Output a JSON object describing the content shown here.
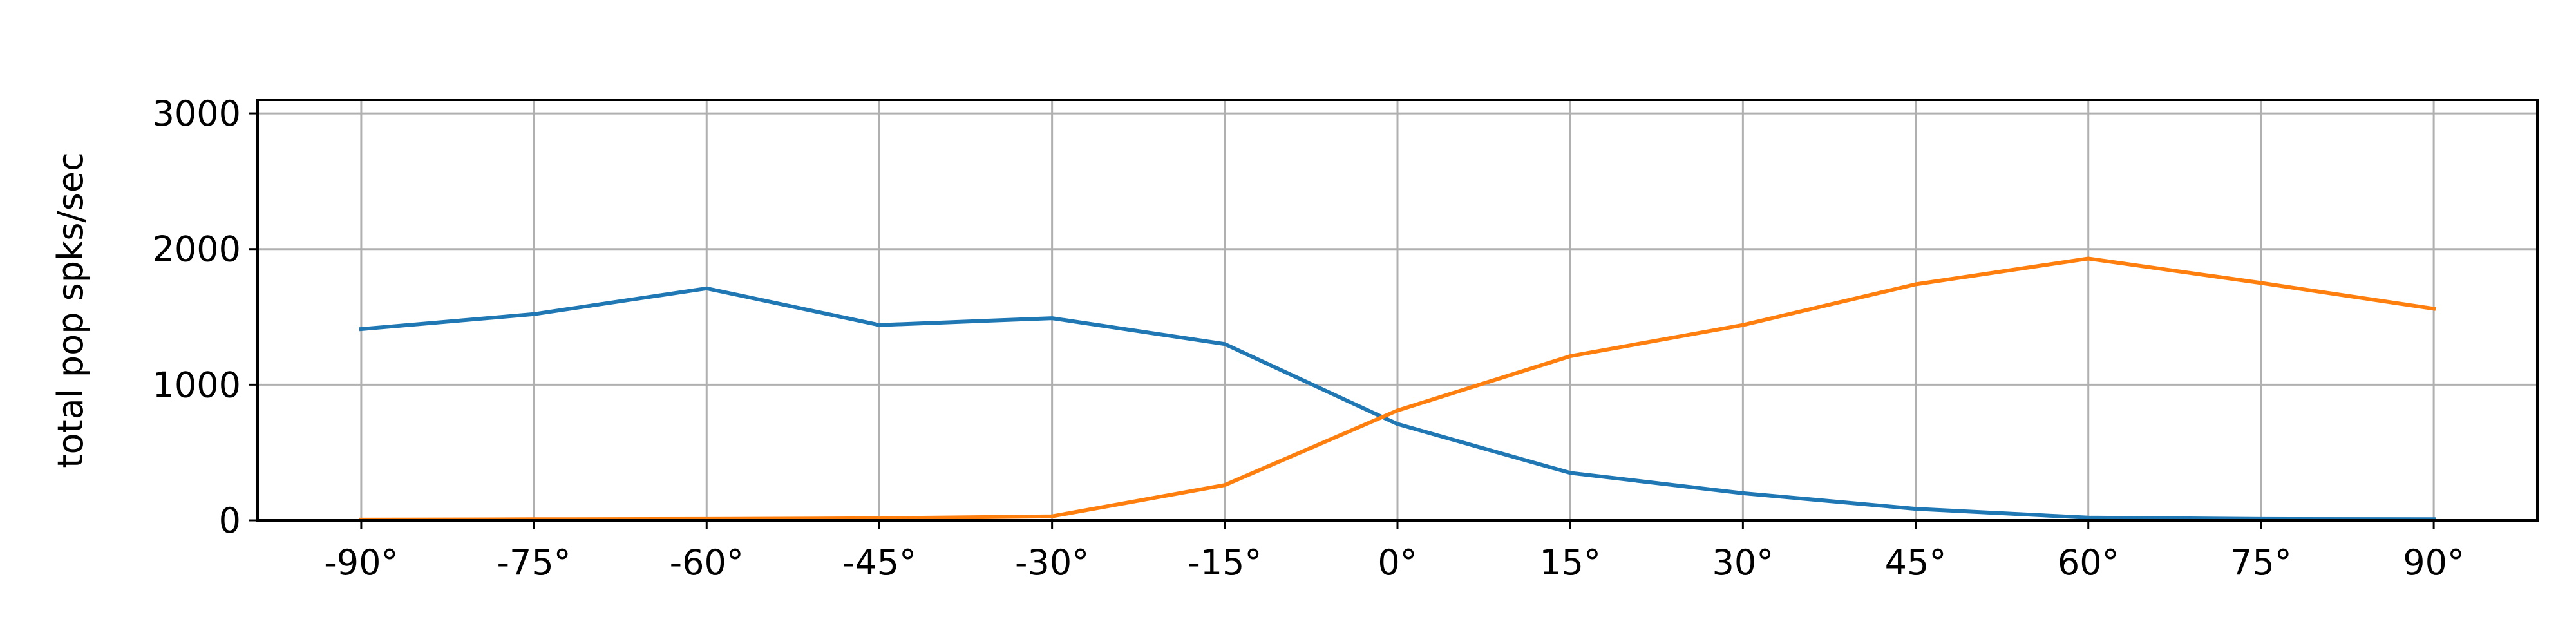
{
  "chart_data": {
    "type": "line",
    "title": "",
    "xlabel": "",
    "ylabel": "total pop spks/sec",
    "categories": [
      "-90°",
      "-75°",
      "-60°",
      "-45°",
      "-30°",
      "-15°",
      "0°",
      "15°",
      "30°",
      "45°",
      "60°",
      "75°",
      "90°"
    ],
    "x": [
      -90,
      -75,
      -60,
      -45,
      -30,
      -15,
      0,
      15,
      30,
      45,
      60,
      75,
      90
    ],
    "xlim": [
      -99,
      99
    ],
    "ylim": [
      0,
      3100
    ],
    "yticks": [
      0,
      1000,
      2000,
      3000
    ],
    "grid": true,
    "series": [
      {
        "color": "#1f77b4",
        "values": [
          1410,
          1520,
          1710,
          1440,
          1490,
          1300,
          710,
          350,
          200,
          85,
          20,
          10,
          8
        ]
      },
      {
        "color": "#ff7f0e",
        "values": [
          5,
          8,
          10,
          15,
          30,
          260,
          810,
          1210,
          1440,
          1740,
          1930,
          1750,
          1560
        ]
      }
    ]
  }
}
